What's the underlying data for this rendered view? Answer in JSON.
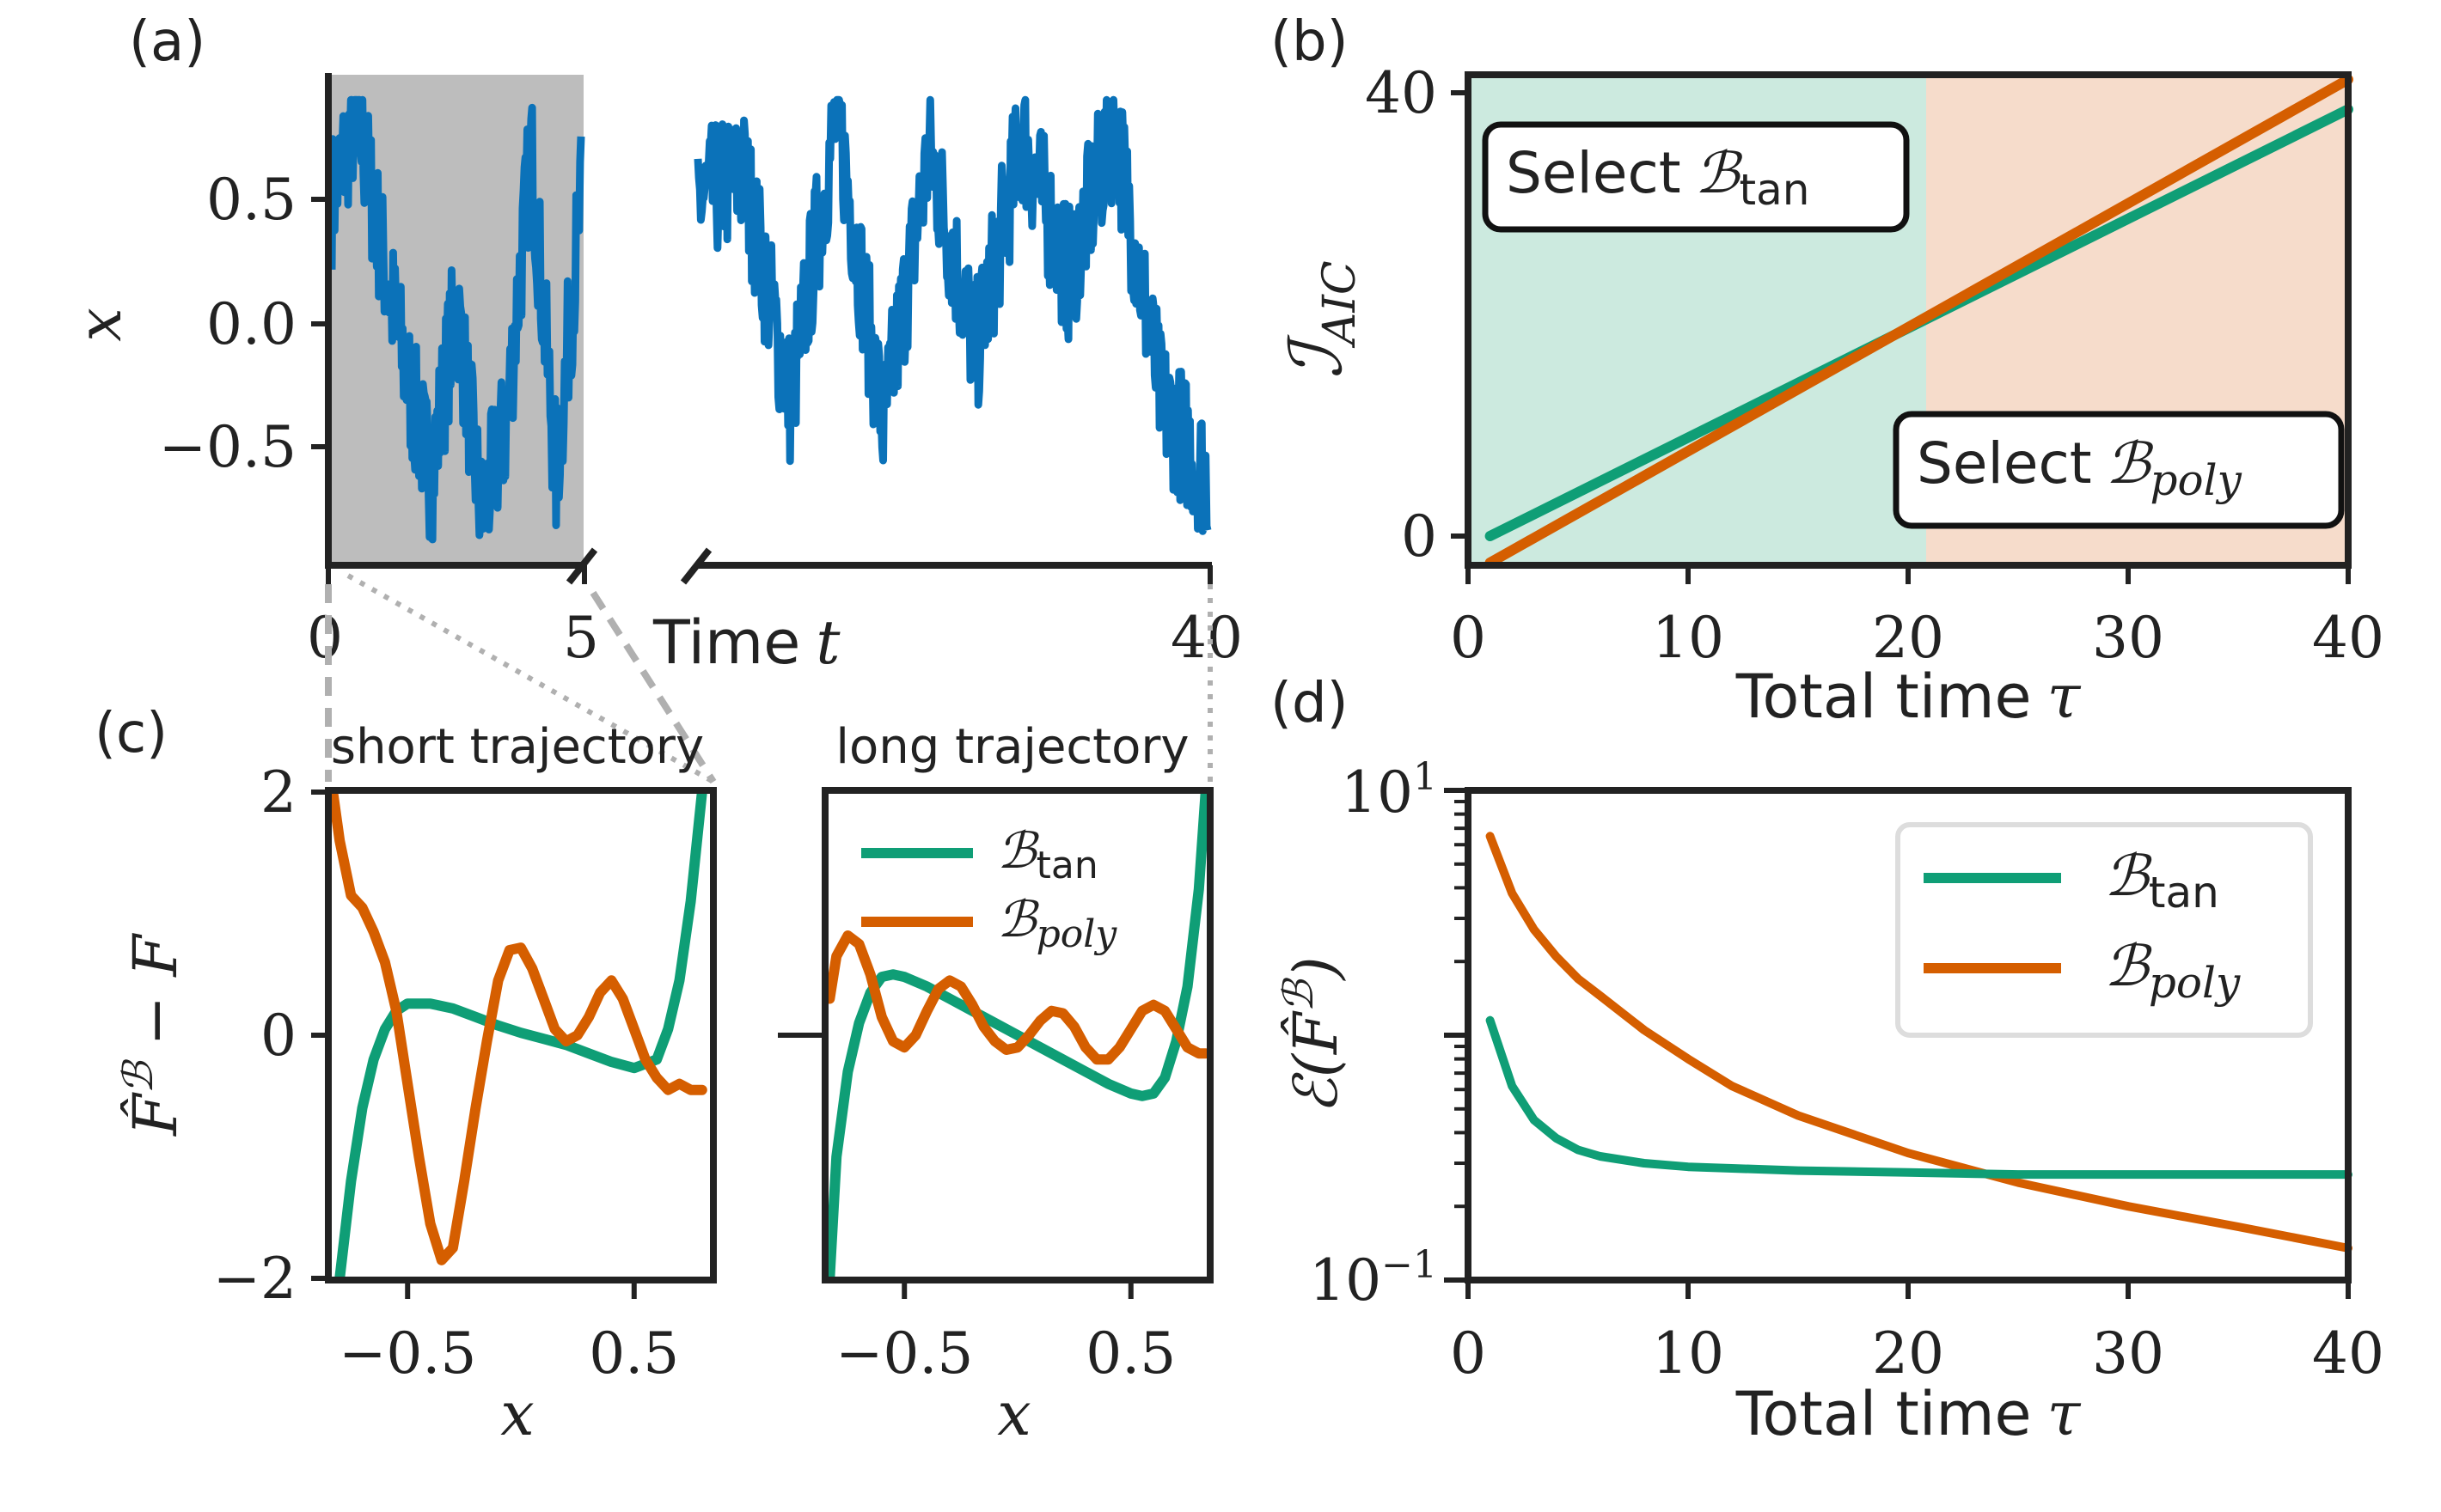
{
  "colors": {
    "trajectory": "#0b72b9",
    "tan": "#0f9e76",
    "poly": "#d55e00",
    "region_tan": "#cceadf",
    "region_poly": "#f6dccb",
    "short_shade": "#bdbdbd",
    "axis": "#222222"
  },
  "panel_a": {
    "label": "(a)",
    "ylabel": "x",
    "xlabel_text": "Time",
    "xlabel_var": "t",
    "yticks": [
      "0.5",
      "0.0",
      "−0.5"
    ],
    "xticks": [
      "0",
      "5",
      "40"
    ]
  },
  "panel_b": {
    "label": "(b)",
    "ylabel": "ℐ",
    "ylabel_sub": "AIC",
    "xlabel_text": "Total time",
    "xlabel_var": "τ",
    "yticks": [
      "0",
      "40"
    ],
    "xticks": [
      "0",
      "10",
      "20",
      "30",
      "40"
    ],
    "box_tan": {
      "text": "Select",
      "sym": "ℬ",
      "sub": "tan"
    },
    "box_poly": {
      "text": "Select",
      "sym": "ℬ",
      "sub": "poly"
    }
  },
  "panel_c": {
    "label": "(c)",
    "left_title": "short trajectory",
    "right_title": "long trajectory",
    "ylabel": "F̂",
    "ylabel_sup": "ℬ",
    "ylabel_rest": "− F",
    "yticks": [
      "2",
      "0",
      "−2"
    ],
    "xticks": [
      "−0.5",
      "0.5"
    ],
    "xlabel": "x",
    "legend": [
      {
        "sym": "ℬ",
        "sub": "tan"
      },
      {
        "sym": "ℬ",
        "sub": "poly"
      }
    ]
  },
  "panel_d": {
    "label": "(d)",
    "ylabel": "ℰ(F̂",
    "ylabel_sup": "ℬ",
    "ylabel_end": ")",
    "yticks": [
      {
        "base": "10",
        "exp": "1"
      },
      {
        "base": "10",
        "exp": "−1"
      }
    ],
    "xticks": [
      "0",
      "10",
      "20",
      "30",
      "40"
    ],
    "xlabel_text": "Total time",
    "xlabel_var": "τ",
    "legend": [
      {
        "sym": "ℬ",
        "sub": "tan"
      },
      {
        "sym": "ℬ",
        "sub": "poly"
      }
    ]
  },
  "chart_data": [
    {
      "type": "line",
      "panel": "a",
      "xlabel": "Time t",
      "ylabel": "x",
      "xlim": [
        0,
        40
      ],
      "ylim": [
        -0.95,
        1.0
      ],
      "axis_break": [
        5,
        "long"
      ],
      "shaded_short_range": [
        0,
        5
      ],
      "series": [
        {
          "values_note": "noisy stochastic trajectory",
          "x": [
            0,
            0.5,
            1,
            1.5,
            2,
            2.5,
            3,
            3.5,
            4,
            4.5,
            5,
            10,
            13,
            16,
            19,
            22,
            25,
            28,
            31,
            34,
            37,
            40
          ],
          "y": [
            0.5,
            0.85,
            0.3,
            -0.2,
            -0.6,
            0.1,
            -0.75,
            -0.4,
            0.7,
            -0.6,
            0.5,
            0.6,
            -0.3,
            0.85,
            -0.4,
            0.7,
            -0.1,
            0.75,
            0.2,
            0.8,
            -0.3,
            -0.6
          ]
        }
      ]
    },
    {
      "type": "line",
      "panel": "b",
      "xlabel": "Total time τ",
      "ylabel": "ℐ_AIC",
      "xlim": [
        0,
        40
      ],
      "ylim": [
        -2,
        42
      ],
      "regions": [
        {
          "x": [
            0,
            20.8
          ],
          "label": "Select ℬ_tan"
        },
        {
          "x": [
            20.8,
            40
          ],
          "label": "Select ℬ_poly"
        }
      ],
      "series": [
        {
          "name": "ℬ_tan",
          "x": [
            1,
            40
          ],
          "y": [
            0,
            38.5
          ]
        },
        {
          "name": "ℬ_poly",
          "x": [
            1,
            40
          ],
          "y": [
            -2.4,
            41.2
          ]
        }
      ]
    },
    {
      "type": "line",
      "panel": "c-short",
      "title": "short trajectory",
      "xlabel": "x",
      "ylabel": "F̂ℬ − F",
      "xlim": [
        -0.85,
        0.85
      ],
      "ylim": [
        -2,
        2
      ],
      "series": [
        {
          "name": "ℬ_tan",
          "x": [
            -0.8,
            -0.75,
            -0.7,
            -0.65,
            -0.6,
            -0.55,
            -0.5,
            -0.4,
            -0.3,
            -0.2,
            -0.1,
            0,
            0.1,
            0.2,
            0.3,
            0.4,
            0.5,
            0.6,
            0.65,
            0.7,
            0.75,
            0.8
          ],
          "y": [
            -2.0,
            -1.2,
            -0.6,
            -0.2,
            0.05,
            0.2,
            0.26,
            0.26,
            0.22,
            0.15,
            0.08,
            0.02,
            -0.03,
            -0.08,
            -0.15,
            -0.22,
            -0.27,
            -0.2,
            0.05,
            0.45,
            1.1,
            2.0
          ]
        },
        {
          "name": "ℬ_poly",
          "x": [
            -0.83,
            -0.8,
            -0.75,
            -0.7,
            -0.65,
            -0.6,
            -0.55,
            -0.5,
            -0.45,
            -0.4,
            -0.35,
            -0.3,
            -0.25,
            -0.2,
            -0.15,
            -0.1,
            -0.05,
            0,
            0.05,
            0.1,
            0.15,
            0.2,
            0.25,
            0.3,
            0.35,
            0.4,
            0.45,
            0.5,
            0.55,
            0.6,
            0.65,
            0.7,
            0.75,
            0.8
          ],
          "y": [
            2.0,
            1.6,
            1.15,
            1.05,
            0.85,
            0.6,
            0.2,
            -0.4,
            -1.0,
            -1.55,
            -1.85,
            -1.75,
            -1.2,
            -0.6,
            -0.05,
            0.45,
            0.7,
            0.72,
            0.55,
            0.3,
            0.05,
            -0.05,
            0.0,
            0.15,
            0.35,
            0.45,
            0.3,
            0.05,
            -0.2,
            -0.35,
            -0.45,
            -0.4,
            -0.45,
            -0.45
          ]
        }
      ]
    },
    {
      "type": "line",
      "panel": "c-long",
      "title": "long trajectory",
      "xlabel": "x",
      "xlim": [
        -0.85,
        0.85
      ],
      "ylim": [
        -2,
        2
      ],
      "series": [
        {
          "name": "ℬ_tan",
          "x": [
            -0.83,
            -0.8,
            -0.75,
            -0.7,
            -0.65,
            -0.6,
            -0.55,
            -0.5,
            -0.4,
            -0.3,
            -0.2,
            -0.1,
            0,
            0.1,
            0.2,
            0.3,
            0.4,
            0.5,
            0.55,
            0.6,
            0.65,
            0.7,
            0.75,
            0.8,
            0.83
          ],
          "y": [
            -2.0,
            -1.0,
            -0.3,
            0.1,
            0.35,
            0.48,
            0.5,
            0.48,
            0.4,
            0.3,
            0.2,
            0.1,
            0.0,
            -0.1,
            -0.2,
            -0.3,
            -0.4,
            -0.48,
            -0.5,
            -0.48,
            -0.35,
            -0.05,
            0.4,
            1.2,
            2.0
          ]
        },
        {
          "name": "ℬ_poly",
          "x": [
            -0.83,
            -0.8,
            -0.75,
            -0.7,
            -0.65,
            -0.6,
            -0.55,
            -0.5,
            -0.45,
            -0.4,
            -0.35,
            -0.3,
            -0.25,
            -0.2,
            -0.15,
            -0.1,
            -0.05,
            0,
            0.05,
            0.1,
            0.15,
            0.2,
            0.25,
            0.3,
            0.35,
            0.4,
            0.45,
            0.5,
            0.55,
            0.6,
            0.65,
            0.7,
            0.75,
            0.8,
            0.83
          ],
          "y": [
            0.3,
            0.65,
            0.82,
            0.75,
            0.5,
            0.15,
            -0.05,
            -0.1,
            0.0,
            0.2,
            0.38,
            0.45,
            0.4,
            0.25,
            0.07,
            -0.05,
            -0.12,
            -0.1,
            0.0,
            0.12,
            0.2,
            0.18,
            0.07,
            -0.1,
            -0.2,
            -0.2,
            -0.1,
            0.05,
            0.2,
            0.25,
            0.2,
            0.05,
            -0.1,
            -0.15,
            -0.15
          ]
        }
      ]
    },
    {
      "type": "line",
      "panel": "d",
      "xlabel": "Total time τ",
      "ylabel": "ℰ(F̂ℬ)",
      "xlim": [
        0,
        40
      ],
      "ylim": [
        0.1,
        10
      ],
      "yscale": "log",
      "legend_position": "top-right",
      "series": [
        {
          "name": "ℬ_tan",
          "x": [
            1,
            2,
            3,
            4,
            5,
            6,
            8,
            10,
            15,
            20,
            25,
            30,
            35,
            40
          ],
          "y": [
            1.15,
            0.62,
            0.45,
            0.38,
            0.34,
            0.32,
            0.3,
            0.29,
            0.28,
            0.275,
            0.27,
            0.27,
            0.27,
            0.27
          ]
        },
        {
          "name": "ℬ_poly",
          "x": [
            1,
            2,
            3,
            4,
            5,
            6,
            8,
            10,
            12,
            15,
            20,
            25,
            30,
            35,
            40
          ],
          "y": [
            6.5,
            3.8,
            2.7,
            2.1,
            1.7,
            1.45,
            1.05,
            0.8,
            0.62,
            0.47,
            0.33,
            0.25,
            0.2,
            0.165,
            0.135
          ]
        }
      ]
    }
  ]
}
